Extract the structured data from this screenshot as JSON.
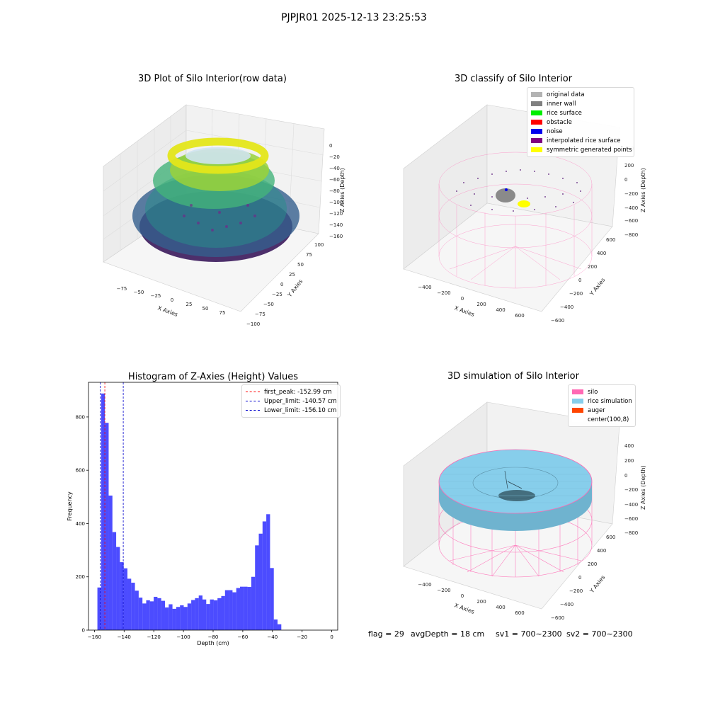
{
  "figure": {
    "suptitle": "PJPJR01 2025-12-13 23:25:53"
  },
  "panels": {
    "raw": {
      "title": "3D Plot of Silo Interior(row data)",
      "x_label": "X Axies",
      "y_label": "Y Axies",
      "z_label": "Z Axies (Depth)",
      "x_ticks": [
        "−75",
        "−50",
        "−25",
        "0",
        "25",
        "50",
        "75"
      ],
      "y_ticks": [
        "−100",
        "−75",
        "−50",
        "−25",
        "0",
        "25",
        "50",
        "75",
        "100"
      ],
      "z_ticks": [
        "0",
        "−20",
        "−40",
        "−60",
        "−80",
        "−100",
        "−120",
        "−140",
        "−160"
      ]
    },
    "classify": {
      "title": "3D classify of Silo Interior",
      "x_label": "X Axies",
      "y_label": "Y Axies",
      "z_label": "Z Axies (Depth)",
      "x_ticks": [
        "−400",
        "−200",
        "0",
        "200",
        "400",
        "600"
      ],
      "y_ticks": [
        "−600",
        "−400",
        "−200",
        "0",
        "200",
        "400",
        "600"
      ],
      "z_ticks": [
        "400",
        "200",
        "0",
        "−200",
        "−400",
        "−600",
        "−800"
      ],
      "legend": [
        {
          "label": "original data",
          "color": "#b3b3b3"
        },
        {
          "label": "inner wall",
          "color": "#808080"
        },
        {
          "label": "rice surface",
          "color": "#00ee00"
        },
        {
          "label": "obstacle",
          "color": "#ff0000"
        },
        {
          "label": "noise",
          "color": "#0000ee"
        },
        {
          "label": "interpolated rice surface",
          "color": "#800080"
        },
        {
          "label": "symmetric generated points",
          "color": "#ffff00"
        }
      ]
    },
    "simulation": {
      "title": "3D simulation of Silo Interior",
      "x_label": "X Axies",
      "y_label": "Y Axies",
      "z_label": "Z Axies (Depth)",
      "x_ticks": [
        "−400",
        "−200",
        "0",
        "200",
        "400",
        "600"
      ],
      "y_ticks": [
        "−600",
        "−400",
        "−200",
        "0",
        "200",
        "400",
        "600"
      ],
      "z_ticks": [
        "400",
        "200",
        "0",
        "−200",
        "−400",
        "−600",
        "−800"
      ],
      "legend": [
        {
          "label": "silo",
          "color": "#ff69b4"
        },
        {
          "label": "rice simulation",
          "color": "#87ceeb"
        },
        {
          "label": "auger",
          "color": "#ff4500"
        },
        {
          "label": "center(100,8)",
          "color": "#ffffff"
        }
      ]
    }
  },
  "stats": {
    "flag": "flag = 29",
    "avg_depth": "avgDepth = 18 cm",
    "sv1": "sv1 = 700~2300",
    "sv2": "sv2 = 700~2300"
  },
  "chart_data": [
    {
      "type": "histogram",
      "title": "Histogram of Z-Axies (Height) Values",
      "xlabel": "Depth (cm)",
      "ylabel": "Frequency",
      "xlim": [
        -164,
        4
      ],
      "ylim": [
        0,
        930
      ],
      "xticks": [
        -160,
        -140,
        -120,
        -100,
        -80,
        -60,
        -40,
        -20,
        0
      ],
      "yticks": [
        0,
        200,
        400,
        600,
        800
      ],
      "bin_start": -158,
      "bin_width": 2.53,
      "color": "#0000ff",
      "counts": [
        160,
        888,
        778,
        505,
        368,
        312,
        255,
        232,
        193,
        178,
        148,
        122,
        100,
        112,
        108,
        125,
        120,
        110,
        85,
        97,
        80,
        87,
        93,
        87,
        100,
        113,
        120,
        130,
        115,
        98,
        115,
        112,
        120,
        128,
        150,
        150,
        142,
        158,
        163,
        163,
        162,
        200,
        318,
        362,
        408,
        435,
        233,
        40,
        22
      ],
      "vlines": [
        {
          "label": "first_peak: -152.99 cm",
          "x": -152.99,
          "color": "#ff0000"
        },
        {
          "label": "Upper_limit: -140.57 cm",
          "x": -140.57,
          "color": "#0000cc"
        },
        {
          "label": "Lower_limit: -156.10 cm",
          "x": -156.1,
          "color": "#0000cc"
        }
      ]
    }
  ]
}
